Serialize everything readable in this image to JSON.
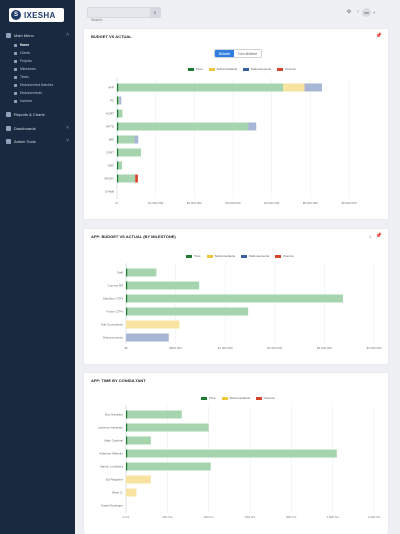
{
  "app": {
    "logo_mark": "S",
    "logo_text": "IXESHA"
  },
  "sidebar": {
    "main_menu_label": "Main Menu",
    "items": [
      {
        "label": "Home",
        "active": true
      },
      {
        "label": "Clients"
      },
      {
        "label": "Projects"
      },
      {
        "label": "Milestones"
      },
      {
        "label": "Times"
      },
      {
        "label": "Disbursement Batches"
      },
      {
        "label": "Disbursements"
      },
      {
        "label": "Invoices"
      }
    ],
    "sections": [
      {
        "label": "Reports & Charts"
      },
      {
        "label": "Dashboards"
      },
      {
        "label": "Admin Tools"
      }
    ]
  },
  "topbar": {
    "search_placeholder": "Search...",
    "avatar_text": "SW"
  },
  "colors": {
    "time": "#a6d4ae",
    "time_dark": "#1e7b34",
    "subconsultants": "#f9e3a0",
    "disbursements": "#a8b6d6",
    "overrun": "#d6452b",
    "accent": "#2f7de1"
  },
  "card1": {
    "title": "BUDGET VS ACTUAL",
    "toggle_on": "Billable",
    "toggle_off": "Non-Billable"
  },
  "card2": {
    "title": "AFP: BUDGET VS ACTUAL (BY MILESTONE)"
  },
  "card3": {
    "title": "AFP: TIME BY CONSULTANT"
  },
  "legend_labels": {
    "time": "Time",
    "subconsultants": "Subconsultants",
    "disbursements": "Disbursements",
    "overrun": "Overrun"
  },
  "chart_data": [
    {
      "type": "bar",
      "orientation": "horizontal",
      "stacked": true,
      "categories": [
        "AFP",
        "PC",
        "ACRT",
        "AFTD",
        "BEI",
        "CSRT",
        "DBC",
        "MCWY",
        "D-Wall"
      ],
      "series": [
        {
          "name": "Time",
          "values": [
            4300000,
            60000,
            140000,
            3400000,
            450000,
            620000,
            130000,
            470000,
            0
          ]
        },
        {
          "name": "Subconsultants",
          "values": [
            550000,
            0,
            0,
            0,
            0,
            0,
            0,
            0,
            0
          ]
        },
        {
          "name": "Disbursements",
          "values": [
            450000,
            50000,
            0,
            200000,
            100000,
            0,
            0,
            0,
            0
          ]
        },
        {
          "name": "Overrun",
          "values": [
            0,
            0,
            0,
            0,
            0,
            0,
            0,
            70000,
            0
          ]
        }
      ],
      "xticks": [
        "0/-",
        "$1,000,000",
        "$2,000,000",
        "$3,000,000",
        "$4,000,000",
        "$5,000,000",
        "$6,000,000"
      ],
      "xlim": [
        0,
        6000000
      ],
      "legend": "top-center"
    },
    {
      "type": "bar",
      "orientation": "horizontal",
      "stacked": true,
      "categories": [
        "Staff",
        "Comms RP",
        "Sandbox CTPs",
        "Focus CTPs",
        "Sub-Consultants",
        "Disbursements"
      ],
      "series": [
        {
          "name": "Time",
          "values": [
            490000,
            1180000,
            3500000,
            1970000,
            0,
            0
          ]
        },
        {
          "name": "Subconsultants",
          "values": [
            0,
            0,
            0,
            0,
            860000,
            0
          ]
        },
        {
          "name": "Disbursements",
          "values": [
            0,
            0,
            0,
            0,
            0,
            690000
          ]
        },
        {
          "name": "Overrun",
          "values": [
            0,
            0,
            0,
            0,
            0,
            0
          ]
        }
      ],
      "xticks": [
        "$0",
        "$500,000",
        "$1,000,000",
        "$1,500,000",
        "$2,000,000",
        "$2,500,000"
      ],
      "xlim": [
        0,
        4000000
      ],
      "legend": "top-center"
    },
    {
      "type": "bar",
      "orientation": "horizontal",
      "stacked": true,
      "categories": [
        "Eco Hamilton",
        "Laurence Abraham",
        "Mark Cardinal",
        "Aldebran Withelm",
        "Marvin Loveliford",
        "Ed Ridgeline",
        "Brian S.",
        "Daniel Ecstinger"
      ],
      "series": [
        {
          "name": "Time",
          "values": [
            270,
            400,
            120,
            1020,
            410,
            0,
            0,
            0
          ]
        },
        {
          "name": "Subconsultants",
          "values": [
            0,
            0,
            0,
            0,
            0,
            120,
            50,
            0
          ]
        },
        {
          "name": "Overrun",
          "values": [
            0,
            0,
            0,
            0,
            0,
            0,
            0,
            0
          ]
        }
      ],
      "xticks": [
        "0 hrs",
        "200 hrs",
        "400 hrs",
        "600 hrs",
        "800 hrs",
        "1,000 hrs",
        "1,200 hrs"
      ],
      "xlim": [
        0,
        1200
      ],
      "legend": "top-center"
    }
  ]
}
